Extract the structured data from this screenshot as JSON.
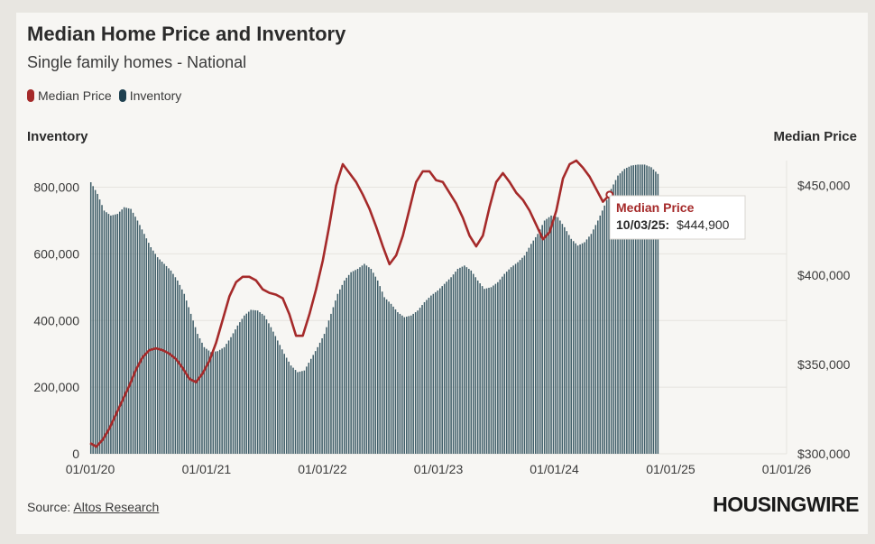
{
  "header": {
    "title": "Median Home Price and Inventory",
    "subtitle": "Single family homes - National"
  },
  "legend": {
    "items": [
      {
        "label": "Median Price",
        "color": "#a52a2a"
      },
      {
        "label": "Inventory",
        "color": "#1f4150"
      }
    ]
  },
  "axes": {
    "left_title": "Inventory",
    "right_title": "Median Price"
  },
  "tooltip": {
    "series": "Median Price",
    "date": "10/03/25:",
    "value": "$444,900"
  },
  "footer": {
    "source_prefix": "Source: ",
    "source_link": "Altos Research",
    "brand": "HOUSINGWIRE"
  },
  "colors": {
    "price_line": "#a52a2a",
    "inventory_bars": "#3e5d68",
    "grid": "#e6e4df"
  },
  "chart_data": {
    "type": "bar+line",
    "x_axis": {
      "type": "date",
      "range": [
        "2020-01-01",
        "2026-01-01"
      ],
      "tick_labels": [
        "01/01/20",
        "01/01/21",
        "01/01/22",
        "01/01/23",
        "01/01/24",
        "01/01/25",
        "01/01/26"
      ]
    },
    "y_left": {
      "range": [
        0,
        880000
      ],
      "tick_values": [
        0,
        200000,
        400000,
        600000,
        800000
      ],
      "tick_labels": [
        "0",
        "200,000",
        "400,000",
        "600,000",
        "800,000"
      ]
    },
    "y_right": {
      "range": [
        300000,
        464000
      ],
      "tick_values": [
        300000,
        350000,
        400000,
        450000
      ],
      "tick_labels": [
        "$300,000",
        "$350,000",
        "$400,000",
        "$450,000"
      ]
    },
    "grid": true,
    "series": [
      {
        "name": "Inventory",
        "type": "bar",
        "axis": "left",
        "points": [
          [
            "2020-01-03",
            815000
          ],
          [
            "2020-01-24",
            780000
          ],
          [
            "2020-02-14",
            730000
          ],
          [
            "2020-03-06",
            715000
          ],
          [
            "2020-03-27",
            720000
          ],
          [
            "2020-04-17",
            740000
          ],
          [
            "2020-05-08",
            735000
          ],
          [
            "2020-05-29",
            700000
          ],
          [
            "2020-06-19",
            660000
          ],
          [
            "2020-07-10",
            620000
          ],
          [
            "2020-07-31",
            590000
          ],
          [
            "2020-08-21",
            570000
          ],
          [
            "2020-09-11",
            550000
          ],
          [
            "2020-10-02",
            520000
          ],
          [
            "2020-10-23",
            480000
          ],
          [
            "2020-11-13",
            420000
          ],
          [
            "2020-12-04",
            360000
          ],
          [
            "2020-12-25",
            320000
          ],
          [
            "2021-01-15",
            305000
          ],
          [
            "2021-02-05",
            308000
          ],
          [
            "2021-02-26",
            320000
          ],
          [
            "2021-03-19",
            350000
          ],
          [
            "2021-04-09",
            385000
          ],
          [
            "2021-04-30",
            415000
          ],
          [
            "2021-05-21",
            432000
          ],
          [
            "2021-06-11",
            430000
          ],
          [
            "2021-07-02",
            415000
          ],
          [
            "2021-07-23",
            380000
          ],
          [
            "2021-08-13",
            340000
          ],
          [
            "2021-09-03",
            300000
          ],
          [
            "2021-09-24",
            265000
          ],
          [
            "2021-10-15",
            245000
          ],
          [
            "2021-11-05",
            250000
          ],
          [
            "2021-11-26",
            285000
          ],
          [
            "2021-12-17",
            320000
          ],
          [
            "2022-01-07",
            360000
          ],
          [
            "2022-01-28",
            420000
          ],
          [
            "2022-02-18",
            480000
          ],
          [
            "2022-03-11",
            520000
          ],
          [
            "2022-04-01",
            545000
          ],
          [
            "2022-04-22",
            555000
          ],
          [
            "2022-05-13",
            570000
          ],
          [
            "2022-06-03",
            555000
          ],
          [
            "2022-06-24",
            520000
          ],
          [
            "2022-07-15",
            470000
          ],
          [
            "2022-08-05",
            450000
          ],
          [
            "2022-08-26",
            425000
          ],
          [
            "2022-09-16",
            410000
          ],
          [
            "2022-10-07",
            415000
          ],
          [
            "2022-10-28",
            430000
          ],
          [
            "2022-11-18",
            455000
          ],
          [
            "2022-12-09",
            475000
          ],
          [
            "2022-12-30",
            490000
          ],
          [
            "2023-01-20",
            510000
          ],
          [
            "2023-02-10",
            530000
          ],
          [
            "2023-03-03",
            555000
          ],
          [
            "2023-03-24",
            565000
          ],
          [
            "2023-04-14",
            550000
          ],
          [
            "2023-05-05",
            520000
          ],
          [
            "2023-05-26",
            495000
          ],
          [
            "2023-06-16",
            500000
          ],
          [
            "2023-07-07",
            515000
          ],
          [
            "2023-07-28",
            540000
          ],
          [
            "2023-08-18",
            560000
          ],
          [
            "2023-09-08",
            575000
          ],
          [
            "2023-09-29",
            595000
          ],
          [
            "2023-10-20",
            630000
          ],
          [
            "2023-11-10",
            660000
          ],
          [
            "2023-12-01",
            700000
          ],
          [
            "2023-12-22",
            715000
          ],
          [
            "2024-01-12",
            710000
          ],
          [
            "2024-02-02",
            680000
          ],
          [
            "2024-02-23",
            645000
          ],
          [
            "2024-03-15",
            625000
          ],
          [
            "2024-04-05",
            635000
          ],
          [
            "2024-04-26",
            660000
          ],
          [
            "2024-05-17",
            700000
          ],
          [
            "2024-06-07",
            745000
          ],
          [
            "2024-06-28",
            795000
          ],
          [
            "2024-07-19",
            835000
          ],
          [
            "2024-08-09",
            855000
          ],
          [
            "2024-08-30",
            865000
          ],
          [
            "2024-09-20",
            868000
          ],
          [
            "2024-10-11",
            868000
          ],
          [
            "2024-11-01",
            860000
          ],
          [
            "2024-11-22",
            840000
          ]
        ]
      },
      {
        "name": "Median Price",
        "type": "line",
        "axis": "right",
        "points": [
          [
            "2020-01-01",
            306000
          ],
          [
            "2020-01-20",
            304000
          ],
          [
            "2020-02-10",
            308000
          ],
          [
            "2020-03-01",
            314000
          ],
          [
            "2020-03-22",
            322000
          ],
          [
            "2020-04-12",
            330000
          ],
          [
            "2020-05-03",
            338000
          ],
          [
            "2020-05-24",
            347000
          ],
          [
            "2020-06-14",
            354000
          ],
          [
            "2020-07-05",
            358000
          ],
          [
            "2020-07-26",
            359000
          ],
          [
            "2020-08-16",
            358000
          ],
          [
            "2020-09-06",
            356000
          ],
          [
            "2020-09-27",
            353000
          ],
          [
            "2020-10-18",
            348000
          ],
          [
            "2020-11-08",
            342000
          ],
          [
            "2020-11-29",
            340000
          ],
          [
            "2020-12-20",
            345000
          ],
          [
            "2021-01-10",
            352000
          ],
          [
            "2021-01-31",
            362000
          ],
          [
            "2021-02-21",
            375000
          ],
          [
            "2021-03-14",
            388000
          ],
          [
            "2021-04-04",
            396000
          ],
          [
            "2021-04-25",
            399000
          ],
          [
            "2021-05-16",
            399000
          ],
          [
            "2021-06-06",
            397000
          ],
          [
            "2021-06-27",
            392000
          ],
          [
            "2021-07-18",
            390000
          ],
          [
            "2021-08-08",
            389000
          ],
          [
            "2021-08-29",
            387000
          ],
          [
            "2021-09-19",
            378000
          ],
          [
            "2021-10-10",
            366000
          ],
          [
            "2021-10-31",
            366000
          ],
          [
            "2021-11-21",
            378000
          ],
          [
            "2021-12-12",
            392000
          ],
          [
            "2022-01-02",
            408000
          ],
          [
            "2022-01-23",
            428000
          ],
          [
            "2022-02-13",
            450000
          ],
          [
            "2022-03-06",
            462000
          ],
          [
            "2022-03-27",
            457000
          ],
          [
            "2022-04-17",
            452000
          ],
          [
            "2022-05-08",
            445000
          ],
          [
            "2022-05-29",
            437000
          ],
          [
            "2022-06-19",
            427000
          ],
          [
            "2022-07-10",
            416000
          ],
          [
            "2022-07-31",
            406000
          ],
          [
            "2022-08-21",
            411000
          ],
          [
            "2022-09-11",
            422000
          ],
          [
            "2022-10-02",
            437000
          ],
          [
            "2022-10-23",
            452000
          ],
          [
            "2022-11-13",
            458000
          ],
          [
            "2022-12-04",
            458000
          ],
          [
            "2022-12-25",
            453000
          ],
          [
            "2023-01-15",
            452000
          ],
          [
            "2023-02-05",
            446000
          ],
          [
            "2023-02-26",
            440000
          ],
          [
            "2023-03-19",
            432000
          ],
          [
            "2023-04-09",
            422000
          ],
          [
            "2023-04-30",
            416000
          ],
          [
            "2023-05-21",
            422000
          ],
          [
            "2023-06-11",
            438000
          ],
          [
            "2023-07-02",
            452000
          ],
          [
            "2023-07-23",
            457000
          ],
          [
            "2023-08-13",
            452000
          ],
          [
            "2023-09-03",
            446000
          ],
          [
            "2023-09-24",
            442000
          ],
          [
            "2023-10-15",
            436000
          ],
          [
            "2023-11-05",
            428000
          ],
          [
            "2023-11-26",
            420000
          ],
          [
            "2023-12-17",
            424000
          ],
          [
            "2024-01-07",
            436000
          ],
          [
            "2024-01-28",
            454000
          ],
          [
            "2024-02-18",
            462000
          ],
          [
            "2024-03-10",
            464000
          ],
          [
            "2024-03-31",
            460000
          ],
          [
            "2024-04-21",
            455000
          ],
          [
            "2024-05-12",
            448000
          ],
          [
            "2024-06-02",
            441000
          ],
          [
            "2024-06-23",
            444900
          ]
        ]
      }
    ],
    "annotations": [
      {
        "type": "tooltip",
        "series": "Median Price",
        "x": "2025-10-03",
        "y": 444900,
        "text": "10/03/25: $444,900"
      }
    ]
  }
}
